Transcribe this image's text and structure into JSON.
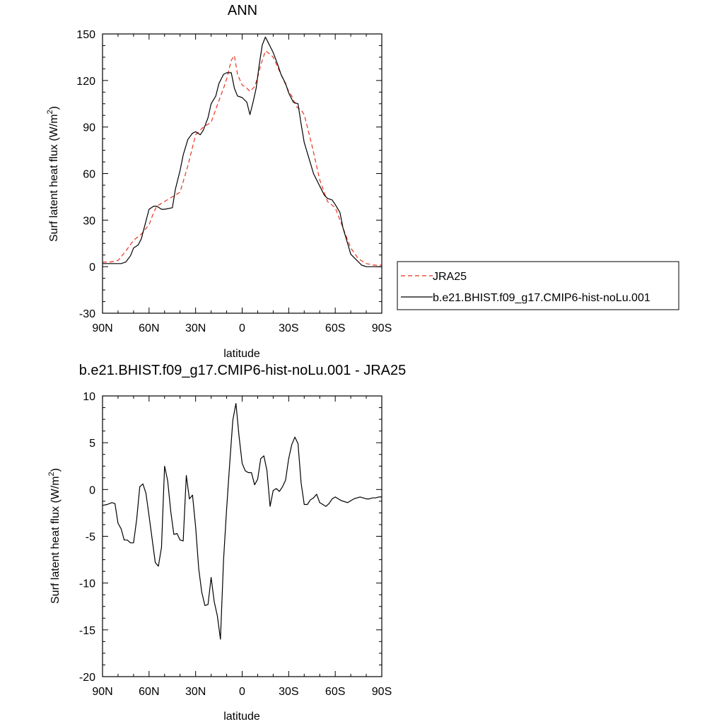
{
  "chart_data": [
    {
      "type": "line",
      "title": "ANN",
      "xlabel": "latitude",
      "ylabel": "Surf latent heat flux (W/m",
      "ylabel_sup": "2",
      "ylabel_close": ")",
      "xlim": [
        90,
        -90
      ],
      "ylim": [
        -30,
        150
      ],
      "xticks": [
        {
          "value": 90,
          "label": "90N"
        },
        {
          "value": 60,
          "label": "60N"
        },
        {
          "value": 30,
          "label": "30N"
        },
        {
          "value": 0,
          "label": "0"
        },
        {
          "value": -30,
          "label": "30S"
        },
        {
          "value": -60,
          "label": "60S"
        },
        {
          "value": -90,
          "label": "90S"
        }
      ],
      "yticks": [
        -30,
        0,
        30,
        60,
        90,
        120,
        150
      ],
      "legend_position": "right",
      "series": [
        {
          "name": "JRA25",
          "color": "#e8321e",
          "dash": "dashed",
          "x": [
            90,
            85,
            80,
            75,
            70,
            65,
            60,
            57,
            55,
            50,
            45,
            40,
            35,
            30,
            25,
            20,
            15,
            12,
            10,
            7,
            5,
            3,
            0,
            -2,
            -5,
            -8,
            -10,
            -12,
            -15,
            -18,
            -20,
            -25,
            -30,
            -32,
            -35,
            -38,
            -40,
            -45,
            -50,
            -55,
            -60,
            -65,
            -70,
            -75,
            -80,
            -85,
            -88,
            -90
          ],
          "y": [
            3,
            3,
            4,
            10,
            17,
            21,
            27,
            35,
            39,
            42,
            45,
            48,
            65,
            85,
            90,
            93,
            107,
            115,
            121,
            133,
            136,
            124,
            117,
            116,
            113,
            116,
            122,
            130,
            139,
            137,
            135,
            124,
            113,
            110,
            103,
            101,
            98,
            78,
            56,
            42,
            38,
            25,
            12,
            5,
            2,
            1,
            1,
            1
          ]
        },
        {
          "name": "b.e21.BHIST.f09_g17.CMIP6-hist-noLu.001",
          "color": "#000000",
          "dash": "solid",
          "x": [
            90,
            85,
            80,
            78,
            75,
            72,
            70,
            67,
            65,
            60,
            57,
            55,
            52,
            50,
            45,
            43,
            40,
            38,
            35,
            32,
            30,
            27,
            25,
            22,
            20,
            17,
            15,
            12,
            10,
            7,
            5,
            3,
            0,
            -3,
            -5,
            -7,
            -9,
            -11,
            -13,
            -15,
            -17,
            -20,
            -23,
            -25,
            -28,
            -30,
            -33,
            -36,
            -38,
            -40,
            -43,
            -46,
            -50,
            -53,
            -55,
            -58,
            -60,
            -63,
            -65,
            -68,
            -70,
            -73,
            -75,
            -77,
            -80,
            -82,
            -84,
            -86,
            -88,
            -90
          ],
          "y": [
            2,
            2,
            2,
            2,
            3,
            7,
            12,
            14,
            18,
            37,
            39,
            39,
            37,
            37,
            38,
            50,
            62,
            72,
            82,
            86,
            87,
            85,
            88,
            96,
            105,
            110,
            118,
            124,
            125,
            125,
            115,
            110,
            109,
            106,
            98,
            106,
            115,
            130,
            143,
            148,
            144,
            138,
            130,
            124,
            118,
            112,
            106,
            105,
            92,
            80,
            70,
            60,
            52,
            46,
            44,
            43,
            40,
            35,
            25,
            15,
            8,
            5,
            3,
            1,
            0,
            0,
            0,
            0,
            0,
            0
          ]
        }
      ]
    },
    {
      "type": "line",
      "title": "b.e21.BHIST.f09_g17.CMIP6-hist-noLu.001 - JRA25",
      "xlabel": "latitude",
      "ylabel": "Surf latent heat flux (W/m",
      "ylabel_sup": "2",
      "ylabel_close": ")",
      "xlim": [
        90,
        -90
      ],
      "ylim": [
        -20,
        10
      ],
      "xticks": [
        {
          "value": 90,
          "label": "90N"
        },
        {
          "value": 60,
          "label": "60N"
        },
        {
          "value": 30,
          "label": "30N"
        },
        {
          "value": 0,
          "label": "0"
        },
        {
          "value": -30,
          "label": "30S"
        },
        {
          "value": -60,
          "label": "60S"
        },
        {
          "value": -90,
          "label": "90S"
        }
      ],
      "yticks": [
        -20,
        -15,
        -10,
        -5,
        0,
        5,
        10
      ],
      "series": [
        {
          "color": "#000000",
          "dash": "solid",
          "x": [
            90,
            87,
            84,
            82,
            80,
            78,
            76,
            74,
            72,
            70,
            68,
            66,
            64,
            62,
            60,
            58,
            56,
            54,
            52,
            50,
            48,
            46,
            44,
            42,
            40,
            38,
            36,
            34,
            32,
            30,
            28,
            26,
            24,
            22,
            20,
            18,
            16,
            14,
            12,
            10,
            8,
            6,
            4,
            2,
            0,
            -2,
            -4,
            -6,
            -8,
            -10,
            -12,
            -14,
            -16,
            -18,
            -20,
            -22,
            -24,
            -26,
            -28,
            -30,
            -32,
            -34,
            -36,
            -38,
            -40,
            -42,
            -44,
            -46,
            -48,
            -50,
            -52,
            -54,
            -56,
            -58,
            -60,
            -62,
            -64,
            -66,
            -68,
            -70,
            -72,
            -74,
            -76,
            -78,
            -80,
            -82,
            -84,
            -86,
            -88,
            -90
          ],
          "y": [
            -1.7,
            -1.6,
            -1.4,
            -1.5,
            -3.6,
            -4.2,
            -5.4,
            -5.4,
            -5.7,
            -5.7,
            -3.2,
            0.3,
            0.6,
            -0.4,
            -2.8,
            -5.3,
            -7.8,
            -8.2,
            -6.2,
            2.5,
            0.9,
            -2.4,
            -4.8,
            -4.7,
            -5.4,
            -5.5,
            1.5,
            -1.0,
            -0.6,
            -4.0,
            -8.5,
            -11.0,
            -12.4,
            -12.3,
            -9.4,
            -12.0,
            -13.5,
            -16.0,
            -7.5,
            -2.0,
            2.8,
            7.4,
            9.2,
            5.7,
            2.8,
            2.0,
            1.8,
            1.8,
            0.5,
            1.1,
            3.3,
            3.6,
            2.0,
            -1.8,
            -0.1,
            0.1,
            -0.2,
            0.3,
            1.0,
            3.3,
            4.8,
            5.6,
            4.9,
            0.7,
            -1.6,
            -1.6,
            -1.1,
            -0.9,
            -0.5,
            -1.4,
            -1.6,
            -1.8,
            -1.5,
            -1.0,
            -0.8,
            -1.0,
            -1.2,
            -1.3,
            -1.4,
            -1.2,
            -1.0,
            -0.9,
            -0.8,
            -0.9,
            -1.0,
            -1.0,
            -0.9,
            -0.9,
            -0.8,
            -0.8
          ]
        }
      ]
    }
  ]
}
